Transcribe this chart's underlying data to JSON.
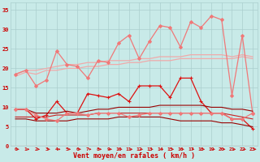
{
  "background_color": "#c8eae8",
  "grid_color": "#aacece",
  "xlabel": "Vent moyen/en rafales ( km/h )",
  "x_values": [
    0,
    1,
    2,
    3,
    4,
    5,
    6,
    7,
    8,
    9,
    10,
    11,
    12,
    13,
    14,
    15,
    16,
    17,
    18,
    19,
    20,
    21,
    22,
    23
  ],
  "series": [
    {
      "name": "pink_upper1",
      "color": "#f0aaaa",
      "linewidth": 0.9,
      "marker": null,
      "y": [
        18.5,
        19.5,
        19.5,
        20.0,
        20.5,
        21.0,
        21.0,
        21.5,
        21.5,
        22.0,
        22.0,
        22.0,
        22.5,
        22.5,
        23.0,
        23.0,
        23.0,
        23.5,
        23.5,
        23.5,
        23.5,
        23.0,
        23.5,
        23.0
      ]
    },
    {
      "name": "pink_upper2",
      "color": "#f0aaaa",
      "linewidth": 0.9,
      "marker": null,
      "y": [
        18.0,
        19.0,
        18.5,
        19.5,
        19.5,
        20.0,
        20.0,
        20.5,
        20.5,
        21.0,
        21.0,
        21.5,
        21.5,
        22.0,
        22.0,
        22.0,
        22.5,
        22.5,
        22.5,
        22.5,
        22.5,
        22.5,
        23.0,
        22.5
      ]
    },
    {
      "name": "pink_zigzag",
      "color": "#f07878",
      "linewidth": 0.9,
      "marker": "D",
      "markersize": 2.0,
      "y": [
        18.5,
        19.5,
        15.5,
        17.0,
        24.5,
        21.0,
        20.5,
        17.5,
        22.0,
        21.5,
        26.5,
        28.5,
        22.5,
        27.0,
        31.0,
        30.5,
        25.5,
        32.0,
        30.5,
        33.5,
        32.5,
        13.0,
        28.5,
        8.5
      ]
    },
    {
      "name": "red_mid_markers",
      "color": "#dd1111",
      "linewidth": 0.9,
      "marker": "+",
      "markersize": 3.0,
      "y": [
        9.5,
        9.5,
        7.0,
        8.0,
        11.5,
        8.5,
        8.5,
        13.5,
        13.0,
        12.5,
        13.5,
        11.5,
        15.5,
        15.5,
        15.5,
        12.5,
        17.5,
        17.5,
        11.5,
        8.5,
        8.5,
        7.0,
        7.0,
        4.5
      ]
    },
    {
      "name": "dark_smooth1",
      "color": "#990000",
      "linewidth": 0.8,
      "marker": null,
      "y": [
        9.5,
        9.5,
        8.5,
        8.5,
        8.5,
        9.0,
        8.5,
        9.0,
        9.5,
        9.5,
        10.0,
        10.0,
        10.0,
        10.0,
        10.5,
        10.5,
        10.5,
        10.5,
        10.5,
        10.0,
        10.0,
        9.5,
        9.5,
        9.0
      ]
    },
    {
      "name": "red_smooth2",
      "color": "#cc2222",
      "linewidth": 0.8,
      "marker": null,
      "y": [
        7.5,
        7.5,
        7.5,
        7.5,
        8.0,
        8.0,
        8.0,
        8.0,
        8.5,
        8.5,
        8.5,
        8.5,
        8.5,
        8.5,
        8.5,
        8.5,
        8.5,
        8.5,
        8.5,
        8.5,
        8.5,
        8.0,
        7.5,
        7.0
      ]
    },
    {
      "name": "dark_lower",
      "color": "#990000",
      "linewidth": 0.8,
      "marker": null,
      "y": [
        7.0,
        7.0,
        6.5,
        6.5,
        6.5,
        6.5,
        7.0,
        7.0,
        7.0,
        7.0,
        7.5,
        7.5,
        7.5,
        7.5,
        7.5,
        7.0,
        6.5,
        6.5,
        6.5,
        6.5,
        6.0,
        6.0,
        5.5,
        5.0
      ]
    },
    {
      "name": "pink_lower_markers",
      "color": "#f07878",
      "linewidth": 0.9,
      "marker": "D",
      "markersize": 2.0,
      "y": [
        9.5,
        9.5,
        8.0,
        7.0,
        6.5,
        8.5,
        8.5,
        8.0,
        8.5,
        8.5,
        8.5,
        7.5,
        8.0,
        8.5,
        8.5,
        8.5,
        8.5,
        8.5,
        8.5,
        8.5,
        8.5,
        7.0,
        7.0,
        8.5
      ]
    }
  ],
  "ylim": [
    0,
    37
  ],
  "xlim": [
    -0.5,
    23.5
  ],
  "yticks": [
    0,
    5,
    10,
    15,
    20,
    25,
    30,
    35
  ],
  "xticks": [
    0,
    1,
    2,
    3,
    4,
    5,
    6,
    7,
    8,
    9,
    10,
    11,
    12,
    13,
    14,
    15,
    16,
    17,
    18,
    19,
    20,
    21,
    22,
    23
  ],
  "tick_color": "#cc0000",
  "label_color": "#cc0000",
  "arrow_color": "#cc2222"
}
